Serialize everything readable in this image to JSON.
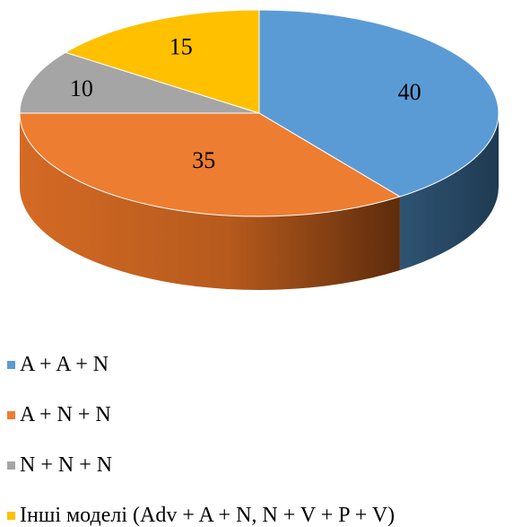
{
  "chart_data": {
    "type": "pie",
    "style": "3d",
    "title": "",
    "categories": [
      "A + A + N",
      "A + N + N",
      "N + N + N",
      "Інші моделі (Adv + A + N, N + V + P + V)"
    ],
    "values": [
      40,
      35,
      10,
      15
    ],
    "data_labels": [
      "40",
      "35",
      "10",
      "15"
    ],
    "colors": [
      "#5B9BD5",
      "#ED7D31",
      "#A5A5A5",
      "#FFC000"
    ],
    "legend_position": "bottom"
  }
}
